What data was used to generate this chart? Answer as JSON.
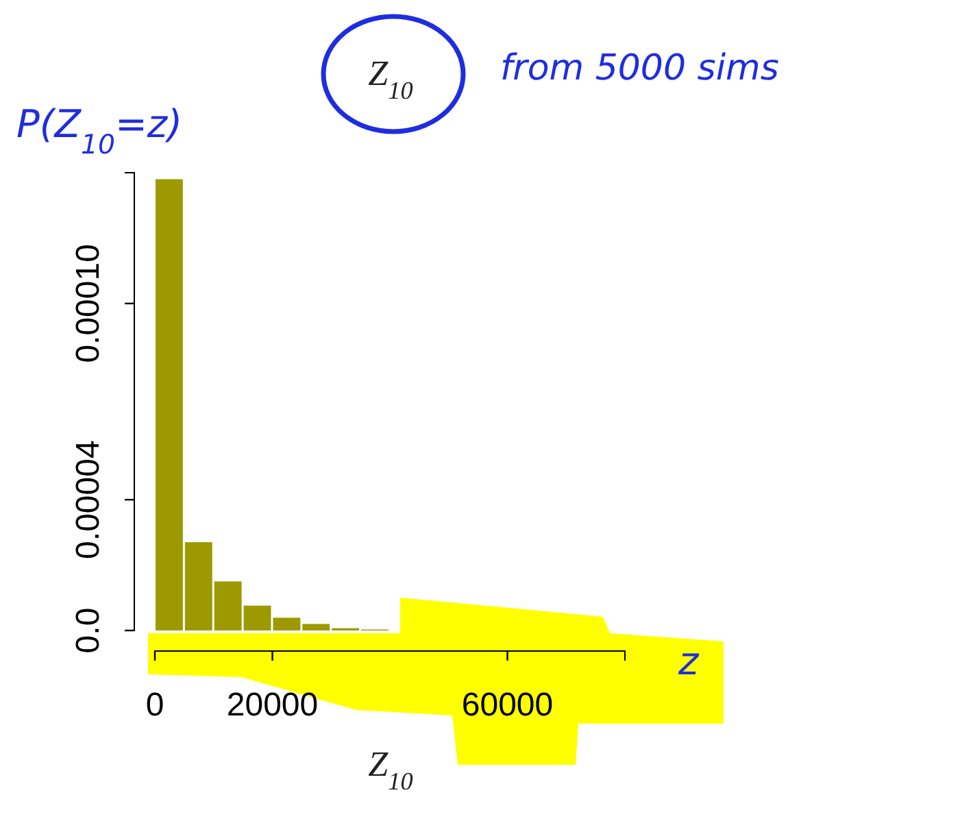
{
  "chart_data": {
    "type": "histogram",
    "title": "Z$_{10}$",
    "xlabel": "Z$_{10}$",
    "bins": [
      0,
      5000,
      10000,
      15000,
      20000,
      25000,
      30000,
      35000,
      40000
    ],
    "values": [
      0.000138,
      2.7e-05,
      1.5e-05,
      7.6e-06,
      3.9e-06,
      2e-06,
      7e-07,
      3e-07
    ],
    "color": "#9c9a00",
    "xlim": [
      0,
      80000
    ],
    "xticks": [
      0,
      20000,
      60000
    ],
    "ylim": [
      0,
      0.00014
    ],
    "yticks": [
      {
        "value": 0,
        "label": "0.0"
      },
      {
        "value": 4e-05,
        "label": "0.00004"
      },
      {
        "value": 0.0001,
        "label": "0.00010"
      }
    ],
    "annotations": [
      "P(Z$_{10}$=z)",
      "from 5000 sims",
      "z"
    ]
  }
}
